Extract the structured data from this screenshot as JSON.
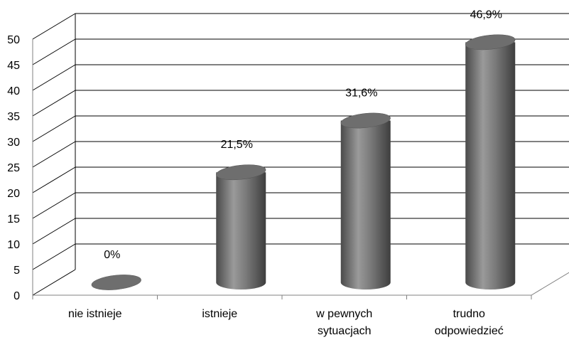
{
  "chart_data": {
    "type": "bar",
    "categories": [
      [
        "nie istnieje"
      ],
      [
        "istnieje"
      ],
      [
        "w pewnych",
        "sytuacjach"
      ],
      [
        "trudno",
        "odpowiedzieć"
      ]
    ],
    "values": [
      0,
      21.5,
      31.6,
      46.9
    ],
    "data_labels": [
      "0%",
      "21,5%",
      "31,6%",
      "46,9%"
    ],
    "y_ticks": [
      "0",
      "5",
      "10",
      "15",
      "20",
      "25",
      "30",
      "35",
      "40",
      "45",
      "50"
    ],
    "ylim": [
      0,
      50
    ],
    "grid": true,
    "bar_color": "#6e6e6e",
    "title": "",
    "xlabel": "",
    "ylabel": ""
  }
}
